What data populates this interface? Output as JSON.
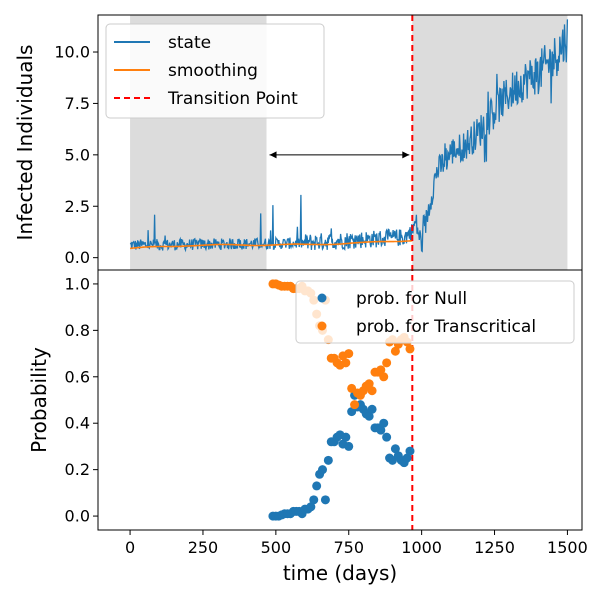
{
  "chart_data": [
    {
      "type": "line",
      "ylabel": "Infected Individuals",
      "xlim": [
        -110,
        1550
      ],
      "ylim": [
        -0.6,
        11.8
      ],
      "yticks": [
        0.0,
        2.5,
        5.0,
        7.5,
        10.0
      ],
      "ytick_labels": [
        "0.0",
        "2.5",
        "5.0",
        "7.5",
        "10.0"
      ],
      "shaded_regions": [
        [
          0,
          468
        ],
        [
          968,
          1500
        ]
      ],
      "transition_point": 968,
      "arrow": {
        "from": 468,
        "to": 968,
        "y": 5.0
      },
      "series": [
        {
          "name": "state",
          "color": "#1f77b4",
          "x_range": [
            0,
            1500
          ],
          "approx_level": [
            [
              0,
              0.55
            ],
            [
              300,
              0.6
            ],
            [
              600,
              0.65
            ],
            [
              940,
              0.9
            ],
            [
              968,
              1.2
            ],
            [
              980,
              1.6
            ],
            [
              1000,
              0.5
            ],
            [
              1020,
              2.0
            ],
            [
              1050,
              4.0
            ],
            [
              1100,
              5.0
            ],
            [
              1150,
              5.3
            ],
            [
              1200,
              6.0
            ],
            [
              1250,
              7.0
            ],
            [
              1300,
              7.8
            ],
            [
              1350,
              8.4
            ],
            [
              1400,
              8.8
            ],
            [
              1450,
              9.4
            ],
            [
              1500,
              10.5
            ]
          ]
        },
        {
          "name": "smoothing",
          "color": "#ff7f0e",
          "x_range": [
            0,
            968
          ],
          "approx_level": [
            [
              0,
              0.45
            ],
            [
              200,
              0.6
            ],
            [
              400,
              0.62
            ],
            [
              600,
              0.63
            ],
            [
              800,
              0.72
            ],
            [
              968,
              0.85
            ]
          ]
        },
        {
          "name": "Transition Point",
          "color": "#ff0000",
          "style": "dashed"
        }
      ],
      "legend_position": "upper left"
    },
    {
      "type": "scatter",
      "xlabel": "time (days)",
      "ylabel": "Probability",
      "xlim": [
        -110,
        1550
      ],
      "ylim": [
        -0.06,
        1.06
      ],
      "xticks": [
        0,
        250,
        500,
        750,
        1000,
        1250,
        1500
      ],
      "xtick_labels": [
        "0",
        "250",
        "500",
        "750",
        "1000",
        "1250",
        "1500"
      ],
      "yticks": [
        0.0,
        0.2,
        0.4,
        0.6,
        0.8,
        1.0
      ],
      "ytick_labels": [
        "0.0",
        "0.2",
        "0.4",
        "0.6",
        "0.8",
        "1.0"
      ],
      "legend_position": "upper right",
      "series": [
        {
          "name": "prob. for Null",
          "color": "#1f77b4",
          "x": [
            490,
            500,
            510,
            520,
            530,
            540,
            550,
            560,
            570,
            580,
            590,
            600,
            610,
            620,
            630,
            640,
            650,
            660,
            670,
            680,
            690,
            700,
            710,
            720,
            730,
            740,
            750,
            760,
            770,
            780,
            790,
            800,
            810,
            820,
            830,
            840,
            850,
            860,
            870,
            880,
            890,
            900,
            910,
            920,
            930,
            940,
            950,
            960
          ],
          "y": [
            0.0,
            0.0,
            0.0,
            0.005,
            0.01,
            0.01,
            0.01,
            0.02,
            0.02,
            0.02,
            0.01,
            0.03,
            0.03,
            0.04,
            0.07,
            0.13,
            0.18,
            0.2,
            0.07,
            0.24,
            0.32,
            0.32,
            0.34,
            0.35,
            0.31,
            0.34,
            0.3,
            0.45,
            0.52,
            0.47,
            0.48,
            0.46,
            0.44,
            0.43,
            0.46,
            0.38,
            0.38,
            0.37,
            0.4,
            0.34,
            0.25,
            0.24,
            0.29,
            0.26,
            0.24,
            0.23,
            0.25,
            0.28
          ]
        },
        {
          "name": "prob. for Transcritical",
          "color": "#ff7f0e",
          "x": [
            490,
            500,
            510,
            520,
            530,
            540,
            550,
            560,
            570,
            580,
            590,
            600,
            610,
            620,
            630,
            640,
            650,
            660,
            670,
            680,
            690,
            700,
            710,
            720,
            730,
            740,
            750,
            760,
            770,
            780,
            790,
            800,
            810,
            820,
            830,
            840,
            850,
            860,
            870,
            880,
            890,
            900,
            910,
            920,
            930,
            940,
            950,
            960
          ],
          "y": [
            1.0,
            1.0,
            0.995,
            0.99,
            0.99,
            0.99,
            0.99,
            0.98,
            0.98,
            0.98,
            0.99,
            0.97,
            0.97,
            0.96,
            0.93,
            0.87,
            0.82,
            0.8,
            0.93,
            0.76,
            0.68,
            0.68,
            0.66,
            0.65,
            0.69,
            0.66,
            0.7,
            0.55,
            0.48,
            0.53,
            0.52,
            0.54,
            0.56,
            0.57,
            0.54,
            0.62,
            0.62,
            0.63,
            0.6,
            0.66,
            0.75,
            0.76,
            0.71,
            0.74,
            0.76,
            0.77,
            0.75,
            0.72
          ]
        }
      ]
    }
  ]
}
